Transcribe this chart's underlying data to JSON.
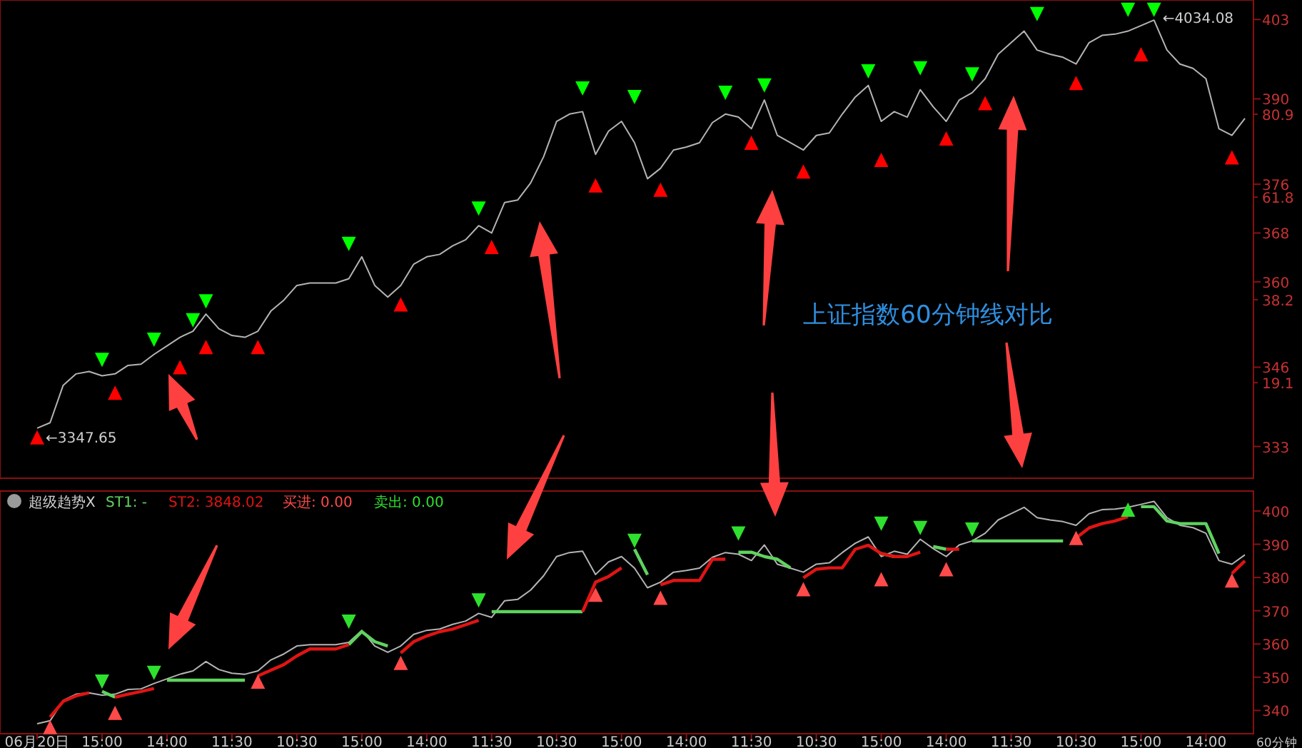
{
  "chart_data": [
    {
      "type": "line",
      "title": "上证指数60分钟线对比",
      "tick_labels": "y",
      "categories": [
        null,
        null,
        null,
        null,
        null,
        null,
        null,
        null,
        null,
        null,
        null,
        null,
        null,
        null,
        null,
        null,
        null,
        null,
        null,
        null,
        null,
        null,
        null,
        null,
        null,
        null,
        null,
        null,
        null,
        null,
        null,
        null,
        null,
        null,
        null,
        null,
        null,
        null,
        null,
        null,
        null,
        null,
        null,
        null,
        null,
        null,
        null,
        null,
        null,
        null,
        null,
        null,
        null,
        null,
        null,
        null,
        null,
        null,
        null,
        null,
        null,
        null,
        null,
        null,
        null,
        null,
        null,
        null,
        null,
        null,
        null,
        null,
        null,
        null,
        null,
        null,
        null,
        null,
        null,
        null,
        null,
        null,
        null,
        null,
        null,
        null,
        null,
        null,
        null,
        null,
        null,
        null,
        null,
        null
      ],
      "ylim": [
        327.8,
        406.2
      ],
      "yticks": [
        403,
        390,
        376,
        368,
        360,
        346,
        333
      ],
      "y2lim": [
        -2.9,
        107.2
      ],
      "y2ticks": [
        80.9,
        61.8,
        38.2,
        19.1
      ],
      "annotations": [
        "←3347.65",
        "←4034.08"
      ],
      "series": [
        {
          "color": "#b4b4b4",
          "values": [
            336,
            336.9,
            343,
            344.9,
            345.3,
            344.6,
            344.9,
            346.3,
            346.5,
            348.1,
            349.5,
            350.9,
            351.9,
            354.7,
            352.3,
            351.2,
            350.9,
            351.9,
            355.2,
            357,
            359.4,
            359.8,
            359.8,
            359.8,
            360.5,
            364.1,
            359.4,
            357.5,
            359.4,
            362.9,
            364.1,
            364.5,
            365.9,
            366.9,
            369.2,
            368,
            373,
            373.4,
            376.2,
            380.5,
            386.3,
            387.5,
            387.9,
            380.9,
            384.7,
            386.3,
            382.8,
            376.9,
            378.6,
            381.6,
            382.1,
            382.8,
            386.1,
            387.5,
            387,
            385.1,
            389.8,
            384,
            382.8,
            381.6,
            384,
            384.4,
            387.5,
            390.3,
            392.2,
            386.3,
            387.9,
            387,
            391.5,
            388.7,
            386.3,
            389.8,
            391,
            393.3,
            397.3,
            399.2,
            401.1,
            398,
            397.3,
            396.8,
            395.7,
            399.2,
            400.4,
            400.6,
            401.1,
            402,
            402.9,
            398,
            395.7,
            395,
            393.3,
            385.1,
            384,
            386.8
          ]
        },
        {
          "type": "scatter",
          "color": "#00ff00",
          "marker": "triangle",
          "values": [
            null,
            null,
            null,
            null,
            null,
            347.2,
            null,
            null,
            null,
            350.5,
            null,
            null,
            353.7,
            356.8,
            null,
            null,
            null,
            null,
            null,
            null,
            null,
            null,
            null,
            null,
            366.2,
            null,
            null,
            null,
            null,
            null,
            null,
            null,
            null,
            null,
            372,
            null,
            null,
            null,
            null,
            null,
            null,
            null,
            391.7,
            null,
            null,
            null,
            390.3,
            null,
            null,
            null,
            null,
            null,
            null,
            391,
            null,
            null,
            392.2,
            null,
            null,
            null,
            null,
            null,
            null,
            null,
            394.5,
            null,
            null,
            null,
            395,
            null,
            null,
            null,
            394,
            null,
            null,
            null,
            null,
            403.9,
            null,
            null,
            null,
            null,
            null,
            null,
            404.6,
            null,
            404.6,
            null,
            null,
            null,
            null,
            null,
            null,
            null
          ]
        },
        {
          "type": "scatter",
          "color": "#ff0000",
          "marker": "triangle",
          "values": [
            334.5,
            null,
            null,
            null,
            null,
            null,
            341.8,
            null,
            null,
            null,
            null,
            346,
            null,
            349.3,
            null,
            null,
            null,
            349.3,
            null,
            null,
            null,
            null,
            null,
            null,
            null,
            null,
            null,
            null,
            356.3,
            null,
            null,
            null,
            null,
            null,
            null,
            365.7,
            null,
            null,
            null,
            null,
            null,
            null,
            null,
            375.8,
            null,
            null,
            null,
            null,
            375.1,
            null,
            null,
            null,
            null,
            null,
            null,
            382.8,
            null,
            null,
            null,
            378.1,
            null,
            null,
            null,
            null,
            null,
            380,
            null,
            null,
            null,
            null,
            383.5,
            null,
            null,
            389.3,
            null,
            null,
            null,
            null,
            null,
            null,
            392.6,
            null,
            null,
            null,
            null,
            397.3,
            null,
            null,
            null,
            null,
            null,
            null,
            380.4,
            null
          ]
        }
      ]
    },
    {
      "type": "line",
      "title": "超级趋势X",
      "legend": "top left",
      "xlabel": "60分钟",
      "categories": [
        "06月20日",
        null,
        null,
        null,
        null,
        "15:00",
        null,
        null,
        null,
        null,
        "14:00",
        null,
        null,
        null,
        null,
        "11:30",
        null,
        null,
        null,
        null,
        "10:30",
        null,
        null,
        null,
        null,
        "15:00",
        null,
        null,
        null,
        null,
        "14:00",
        null,
        null,
        null,
        null,
        "11:30",
        null,
        null,
        null,
        null,
        "10:30",
        null,
        null,
        null,
        null,
        "15:00",
        null,
        null,
        null,
        null,
        "14:00",
        null,
        null,
        null,
        null,
        "11:30",
        null,
        null,
        null,
        null,
        "10:30",
        null,
        null,
        null,
        null,
        "15:00",
        null,
        null,
        null,
        null,
        "14:00",
        null,
        null,
        null,
        null,
        "11:30",
        null,
        null,
        null,
        null,
        "10:30",
        null,
        null,
        null,
        null,
        "15:00",
        null,
        null,
        null,
        null,
        "14:00",
        null,
        null,
        null
      ],
      "ylim": [
        333,
        406
      ],
      "yticks": [
        340,
        350,
        360,
        370,
        380,
        390,
        400
      ],
      "series": [
        {
          "color": "#b4b4b4",
          "values": [
            336,
            336.9,
            343,
            344.9,
            345.3,
            344.6,
            344.9,
            346.3,
            346.5,
            348.1,
            349.5,
            350.9,
            351.9,
            354.7,
            352.3,
            351.2,
            350.9,
            351.9,
            355.2,
            357,
            359.4,
            359.8,
            359.8,
            359.8,
            360.5,
            364.1,
            359.4,
            357.5,
            359.4,
            362.9,
            364.1,
            364.5,
            365.9,
            366.9,
            369.2,
            368,
            373,
            373.4,
            376.2,
            380.5,
            386.3,
            387.5,
            387.9,
            380.9,
            384.7,
            386.3,
            382.8,
            376.9,
            378.6,
            381.6,
            382.1,
            382.8,
            386.1,
            387.5,
            387,
            385.1,
            389.8,
            384,
            382.8,
            381.6,
            384,
            384.4,
            387.5,
            390.3,
            392.2,
            386.3,
            387.9,
            387,
            391.5,
            388.7,
            386.3,
            389.8,
            391,
            393.3,
            397.3,
            399.2,
            401.1,
            398,
            397.3,
            396.8,
            395.7,
            399.2,
            400.4,
            400.6,
            401.1,
            402,
            402.9,
            398,
            395.7,
            395,
            393.3,
            385.1,
            384,
            386.8
          ]
        },
        {
          "name": "ST1: -",
          "color": "#5fd35f",
          "values": [
            null,
            null,
            null,
            null,
            null,
            345.7,
            344,
            null,
            null,
            null,
            349.1,
            349.1,
            349.1,
            349.1,
            349.1,
            349.1,
            349.1,
            null,
            null,
            null,
            null,
            null,
            null,
            null,
            359.8,
            363.7,
            360.7,
            359.4,
            null,
            null,
            null,
            null,
            null,
            null,
            null,
            369.7,
            369.7,
            369.7,
            369.7,
            369.7,
            369.7,
            369.7,
            369.7,
            null,
            null,
            null,
            388.5,
            380.8,
            null,
            null,
            null,
            null,
            null,
            null,
            387.6,
            387.6,
            386.3,
            385.5,
            382.9,
            null,
            null,
            null,
            null,
            null,
            null,
            387.2,
            386.3,
            null,
            null,
            389.3,
            388.5,
            null,
            391,
            391,
            391,
            391,
            391,
            391,
            391,
            391,
            null,
            null,
            null,
            null,
            null,
            401.3,
            401.3,
            397,
            396.2,
            396.2,
            396.2,
            387.2,
            null,
            null
          ]
        },
        {
          "name": "ST2: 3848.02",
          "color": "#e01414",
          "values": [
            null,
            338,
            342.7,
            344.4,
            345.3,
            null,
            344,
            344.9,
            345.7,
            346.6,
            null,
            null,
            null,
            null,
            null,
            null,
            null,
            350.4,
            352.1,
            353.8,
            356.4,
            358.5,
            358.5,
            358.5,
            359.8,
            null,
            null,
            null,
            357.3,
            360.7,
            362.4,
            363.7,
            364.5,
            365.8,
            367.1,
            null,
            null,
            null,
            null,
            null,
            null,
            null,
            369.7,
            378.6,
            380.3,
            382.9,
            null,
            null,
            377.8,
            379.1,
            379.1,
            379.1,
            385.5,
            385.5,
            null,
            null,
            null,
            null,
            null,
            379.9,
            382.5,
            382.9,
            382.9,
            388.5,
            389.7,
            387.2,
            386.3,
            386.3,
            387.6,
            null,
            388.5,
            388.5,
            null,
            null,
            null,
            null,
            null,
            null,
            null,
            null,
            391.9,
            394.9,
            396.2,
            397,
            398.3,
            null,
            null,
            null,
            null,
            null,
            null,
            null,
            381.2,
            385
          ]
        },
        {
          "type": "scatter",
          "name": "买进: 0.00",
          "color": "#ff4a4a",
          "marker": "triangle",
          "values": [
            null,
            335,
            null,
            null,
            null,
            null,
            339.3,
            null,
            null,
            null,
            null,
            null,
            null,
            null,
            null,
            null,
            null,
            348.7,
            null,
            null,
            null,
            null,
            null,
            null,
            null,
            null,
            null,
            null,
            354.3,
            null,
            null,
            null,
            null,
            null,
            null,
            null,
            null,
            null,
            null,
            null,
            null,
            null,
            null,
            374.8,
            null,
            null,
            null,
            null,
            373.9,
            null,
            null,
            null,
            null,
            null,
            null,
            null,
            null,
            null,
            null,
            376.5,
            null,
            null,
            null,
            null,
            null,
            379.5,
            null,
            null,
            null,
            null,
            382.5,
            null,
            null,
            null,
            null,
            null,
            null,
            null,
            null,
            null,
            391.9,
            null,
            null,
            null,
            null,
            null,
            null,
            null,
            null,
            null,
            null,
            null,
            379.1,
            null
          ]
        },
        {
          "type": "scatter",
          "name": "卖出: 0.00",
          "color": "#2fe02f",
          "marker": "triangle",
          "values": [
            null,
            null,
            null,
            null,
            null,
            348.7,
            null,
            null,
            null,
            351.3,
            null,
            null,
            null,
            null,
            null,
            null,
            null,
            null,
            null,
            null,
            null,
            null,
            null,
            null,
            366.7,
            null,
            null,
            null,
            null,
            null,
            null,
            null,
            null,
            null,
            373.1,
            null,
            null,
            null,
            null,
            null,
            null,
            null,
            null,
            null,
            null,
            null,
            391,
            null,
            null,
            null,
            null,
            null,
            null,
            null,
            393.2,
            null,
            null,
            null,
            null,
            null,
            null,
            null,
            null,
            null,
            null,
            396.2,
            null,
            null,
            394.9,
            null,
            null,
            null,
            394.4,
            null,
            null,
            null,
            null,
            null,
            null,
            null,
            null,
            null,
            null,
            null,
            400.4,
            null,
            null,
            null,
            null,
            null,
            null,
            null,
            null,
            null
          ]
        }
      ]
    }
  ]
}
